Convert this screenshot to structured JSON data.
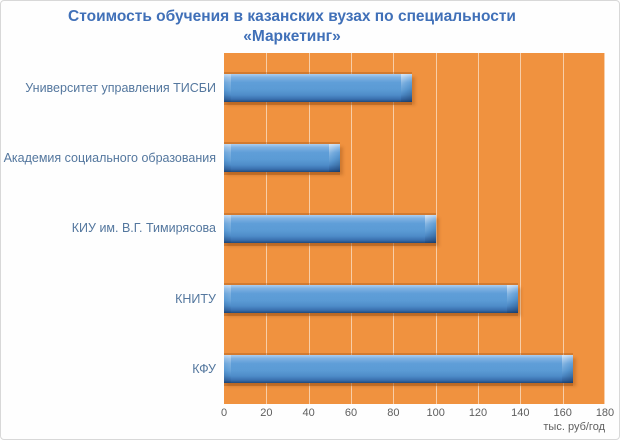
{
  "title": {
    "line1": "Стоимость обучения в казанских вузах по специальности",
    "line2": "«Маркетинг»"
  },
  "chart_data": {
    "type": "bar",
    "orientation": "horizontal",
    "title": "Стоимость обучения в казанских вузах по специальности «Маркетинг»",
    "categories": [
      "Университет управления ТИСБИ",
      "Академия социального образования",
      "КИУ им. В.Г. Тимирясова",
      "КНИТУ",
      "КФУ"
    ],
    "values": [
      89,
      55,
      100,
      139,
      165
    ],
    "xlabel": "тыс. руб/год",
    "ylabel": "",
    "xlim": [
      0,
      180
    ],
    "xticks": [
      0,
      20,
      40,
      60,
      80,
      100,
      120,
      140,
      160,
      180
    ],
    "grid": true,
    "legend": false,
    "colors": {
      "bar": "#5B9BD5",
      "bar_edge_dark": "#1F4A7C",
      "plot_bg": "#F0923F",
      "gridline": "rgba(255,255,255,0.55)",
      "title": "#4070B8",
      "category_label": "#54779E",
      "tick_label": "#5E5E5E",
      "window_bg": "#FEFEFE",
      "window_border": "#D8D8D8"
    }
  }
}
